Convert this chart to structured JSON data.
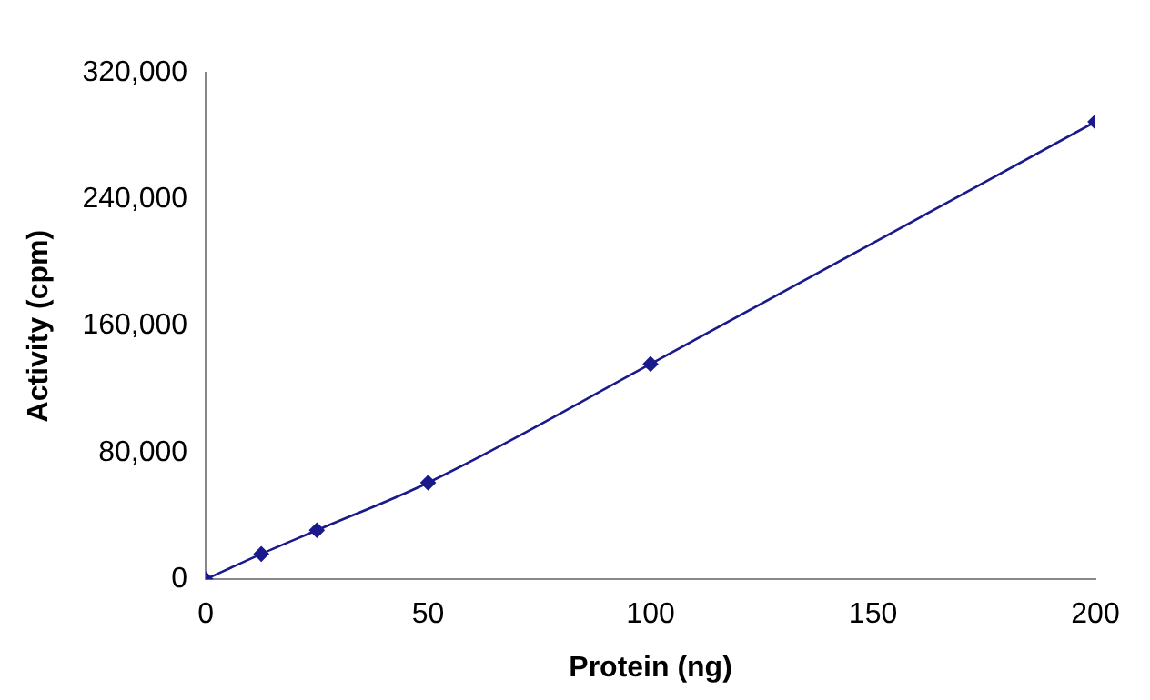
{
  "chart_data": {
    "type": "line",
    "xlabel": "Protein (ng)",
    "ylabel": "Activity (cpm)",
    "x": [
      0,
      12.5,
      25,
      50,
      100,
      200
    ],
    "series": [
      {
        "color": "#1a1a8c",
        "values": [
          0,
          16000,
          31000,
          61000,
          136000,
          289000
        ]
      }
    ],
    "xlim": [
      0,
      200
    ],
    "xticks": [
      0,
      50,
      100,
      150,
      200
    ],
    "ylim": [
      0,
      320000
    ],
    "yticks": [
      0,
      {
        "value": 80000,
        "label": "80,000"
      },
      {
        "value": 160000,
        "label": "160,000"
      },
      {
        "value": 240000,
        "label": "240,000"
      },
      {
        "value": 320000,
        "label": "320,000"
      }
    ],
    "grid": false,
    "legend": false,
    "marker": "diamond",
    "line_style": "solid"
  }
}
